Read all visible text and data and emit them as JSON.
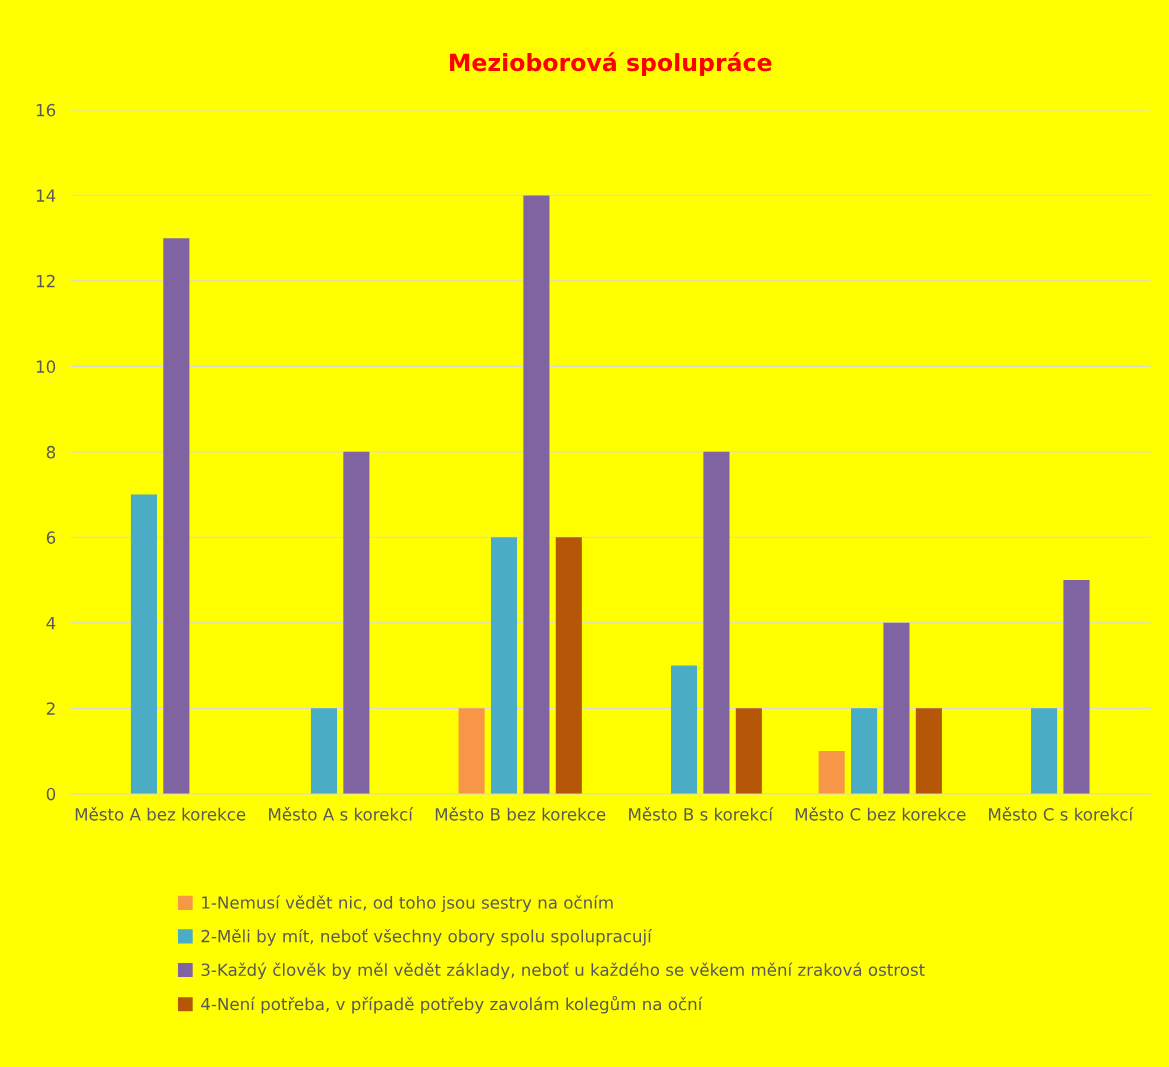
{
  "chart_data": {
    "type": "bar",
    "title": "Mezioborová spolupráce",
    "categories": [
      "Město A bez korekce",
      "Město A s korekcí",
      "Město B bez korekce",
      "Město B s korekcí",
      "Město C bez korekce",
      "Město C s korekcí"
    ],
    "series": [
      {
        "name": "1-Nemusí vědět nic, od toho jsou sestry na očním",
        "color": "#f79646",
        "values": [
          null,
          null,
          2,
          null,
          1,
          null
        ]
      },
      {
        "name": "2-Měli by mít, neboť všechny obory spolu spolupracují",
        "color": "#4bacc6",
        "values": [
          7,
          2,
          6,
          3,
          2,
          2
        ]
      },
      {
        "name": "3-Každý člověk by měl vědět základy, neboť u každého se věkem mění zraková ostrost",
        "color": "#8064a2",
        "values": [
          13,
          8,
          14,
          8,
          4,
          5
        ]
      },
      {
        "name": "4-Není potřeba, v případě potřeby zavolám kolegům na oční",
        "color": "#b65708",
        "values": [
          null,
          null,
          6,
          2,
          2,
          null
        ]
      }
    ],
    "ylim": [
      0,
      16
    ],
    "yticks": [
      0,
      2,
      4,
      6,
      8,
      10,
      12,
      14,
      16
    ],
    "grid": "y",
    "legend": "bottom"
  }
}
